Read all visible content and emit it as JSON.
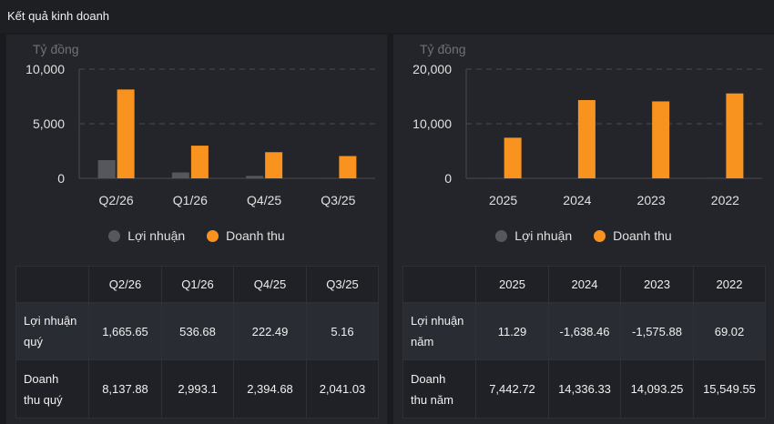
{
  "header": {
    "title": "Kết quả kinh doanh"
  },
  "legend": {
    "profit": "Lợi nhuận",
    "revenue": "Doanh thu"
  },
  "colors": {
    "profit": "#55575c",
    "revenue": "#f7931e",
    "grid": "#4a4b50",
    "axis_text": "#e0e0e0",
    "unit_text": "#707177"
  },
  "chart_data": [
    {
      "type": "bar",
      "ylabel": "Tỷ đồng",
      "ylim": [
        0,
        10000
      ],
      "yticks": [
        0,
        5000,
        10000
      ],
      "ytick_labels": [
        "0",
        "5,000",
        "10,000"
      ],
      "grid": true,
      "legend_position": "bottom",
      "categories": [
        "Q2/26",
        "Q1/26",
        "Q4/25",
        "Q3/25"
      ],
      "series": [
        {
          "name": "Lợi nhuận",
          "values": [
            1665.65,
            536.68,
            222.49,
            5.16
          ]
        },
        {
          "name": "Doanh thu",
          "values": [
            8137.88,
            2993.1,
            2394.68,
            2041.03
          ]
        }
      ]
    },
    {
      "type": "bar",
      "ylabel": "Tỷ đồng",
      "ylim": [
        0,
        20000
      ],
      "yticks": [
        0,
        10000,
        20000
      ],
      "ytick_labels": [
        "0",
        "10,000",
        "20,000"
      ],
      "grid": true,
      "legend_position": "bottom",
      "categories": [
        "2025",
        "2024",
        "2023",
        "2022"
      ],
      "series": [
        {
          "name": "Lợi nhuận",
          "values": [
            11.29,
            -1638.46,
            -1575.88,
            69.02
          ]
        },
        {
          "name": "Doanh thu",
          "values": [
            7442.72,
            14336.33,
            14093.25,
            15549.55
          ]
        }
      ]
    }
  ],
  "tables": {
    "quarterly": {
      "columns": [
        "Q2/26",
        "Q1/26",
        "Q4/25",
        "Q3/25"
      ],
      "rows": [
        {
          "label_lines": [
            "Lợi nhuận",
            "quý"
          ],
          "values": [
            "1,665.65",
            "536.68",
            "222.49",
            "5.16"
          ]
        },
        {
          "label_lines": [
            "Doanh",
            "thu quý"
          ],
          "values": [
            "8,137.88",
            "2,993.1",
            "2,394.68",
            "2,041.03"
          ]
        }
      ]
    },
    "yearly": {
      "columns": [
        "2025",
        "2024",
        "2023",
        "2022"
      ],
      "rows": [
        {
          "label_lines": [
            "Lợi nhuận",
            "năm"
          ],
          "values": [
            "11.29",
            "-1,638.46",
            "-1,575.88",
            "69.02"
          ]
        },
        {
          "label_lines": [
            "Doanh",
            "thu năm"
          ],
          "values": [
            "7,442.72",
            "14,336.33",
            "14,093.25",
            "15,549.55"
          ]
        }
      ]
    }
  }
}
